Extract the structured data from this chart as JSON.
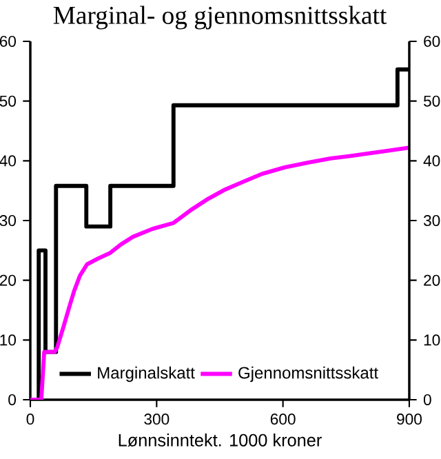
{
  "chart_data": {
    "type": "line",
    "title": "Marginal- og gjennomsnittsskatt",
    "xlabel": "Lønnsinntekt. 1000 kroner",
    "series": [
      {
        "name": "Marginalskatt",
        "type": "step",
        "color": "#000000",
        "x": [
          0,
          20,
          36,
          61,
          133,
          190,
          340,
          872,
          900
        ],
        "values": [
          0,
          25,
          8,
          35.8,
          29,
          35.8,
          49.3,
          55.3,
          55.3
        ]
      },
      {
        "name": "Gjennomsnittsskatt",
        "color": "#ff00ff",
        "x": [
          0,
          26,
          33,
          58,
          64,
          80,
          92,
          104,
          118,
          135,
          160,
          190,
          215,
          244,
          290,
          340,
          380,
          419,
          460,
          506,
          550,
          604,
          660,
          713,
          760,
          800,
          850,
          898
        ],
        "values": [
          0,
          0,
          8,
          8,
          8.8,
          12.5,
          15.4,
          18.2,
          20.8,
          22.7,
          23.6,
          24.6,
          26,
          27.3,
          28.6,
          29.6,
          31.7,
          33.5,
          35.1,
          36.5,
          37.8,
          38.9,
          39.7,
          40.4,
          40.8,
          41.2,
          41.7,
          42.2
        ]
      }
    ],
    "xlim": [
      0,
      900
    ],
    "xticks": [
      0,
      300,
      600,
      900
    ],
    "ylim": [
      0,
      60
    ],
    "yticks": [
      0,
      10,
      20,
      30,
      40,
      50,
      60
    ],
    "y2lim": [
      0,
      60
    ],
    "y2ticks": [
      0,
      10,
      20,
      30,
      40,
      50,
      60
    ],
    "legend": "bottom",
    "grid": false
  }
}
